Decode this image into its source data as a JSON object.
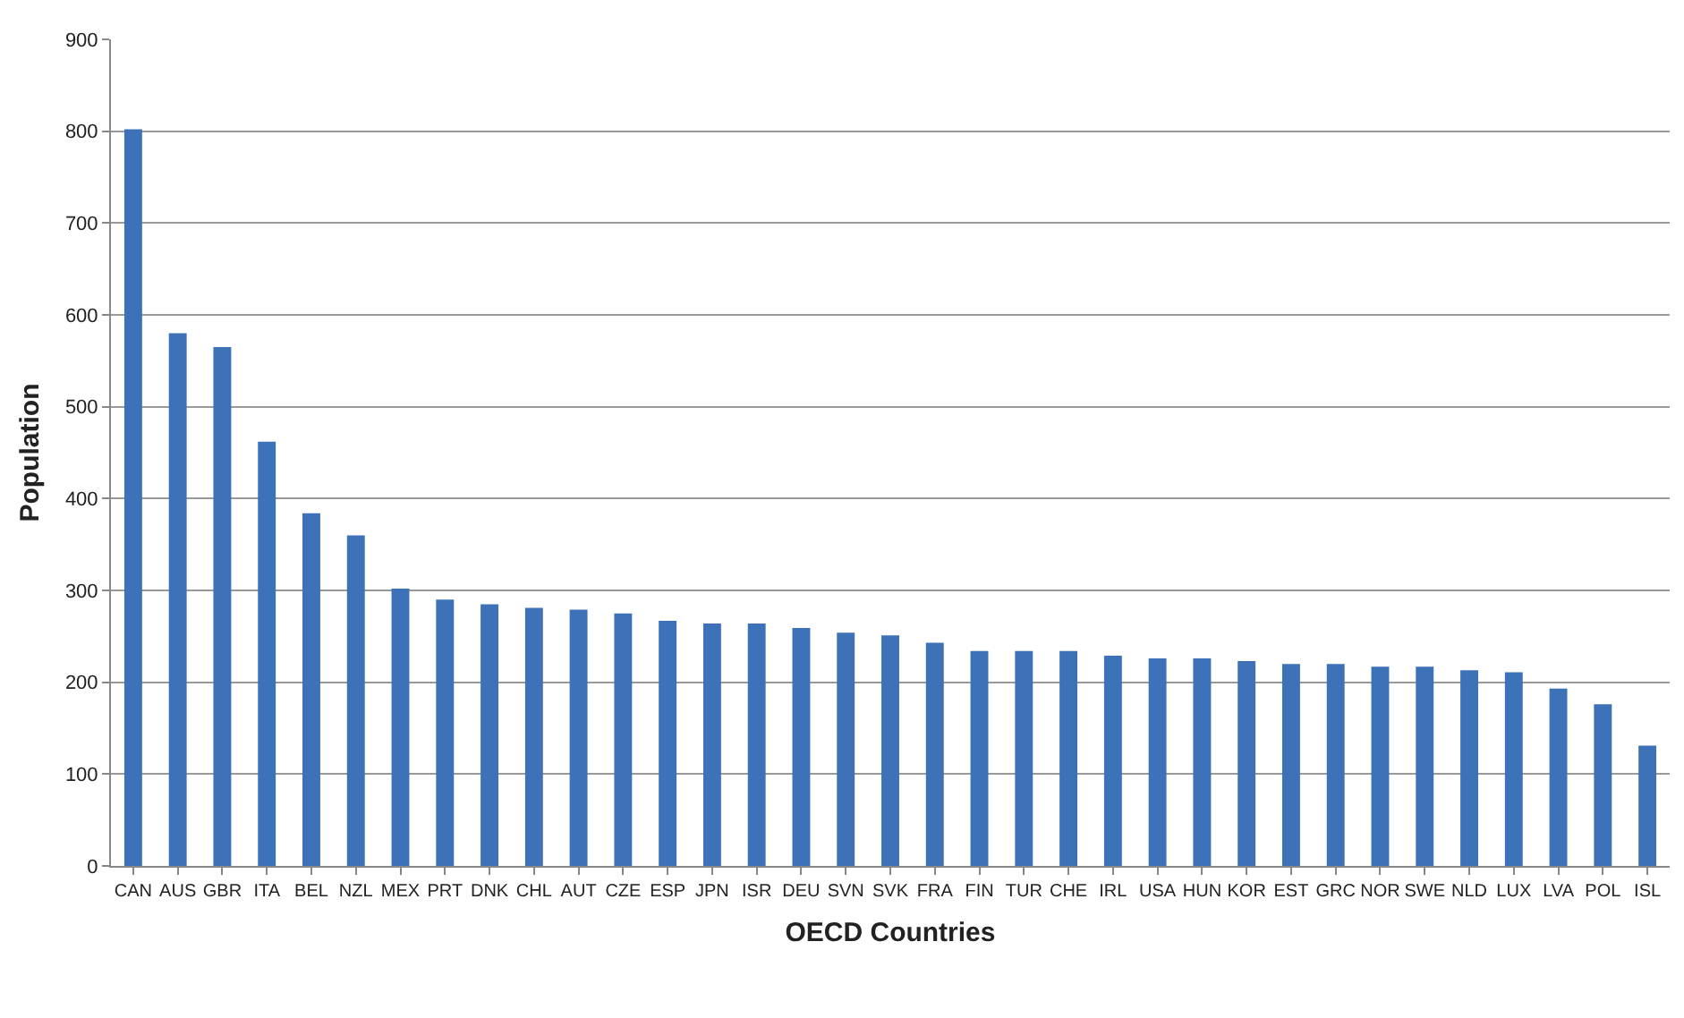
{
  "chart_data": {
    "type": "bar",
    "xlabel": "OECD Countries",
    "ylabel": "Population",
    "categories": [
      "CAN",
      "AUS",
      "GBR",
      "ITA",
      "BEL",
      "NZL",
      "MEX",
      "PRT",
      "DNK",
      "CHL",
      "AUT",
      "CZE",
      "ESP",
      "JPN",
      "ISR",
      "DEU",
      "SVN",
      "SVK",
      "FRA",
      "FIN",
      "TUR",
      "CHE",
      "IRL",
      "USA",
      "HUN",
      "KOR",
      "EST",
      "GRC",
      "NOR",
      "SWE",
      "NLD",
      "LUX",
      "LVA",
      "POL",
      "ISL"
    ],
    "values": [
      802,
      580,
      565,
      462,
      384,
      360,
      302,
      290,
      285,
      281,
      279,
      275,
      267,
      264,
      264,
      259,
      254,
      251,
      243,
      234,
      234,
      234,
      229,
      226,
      226,
      223,
      220,
      220,
      217,
      217,
      213,
      211,
      193,
      176,
      131
    ],
    "color": "#3d72b8",
    "ylim": [
      0,
      900
    ],
    "yticks": [
      0,
      100,
      200,
      300,
      400,
      500,
      600,
      700,
      800,
      900
    ],
    "grid": "y",
    "legend": false
  }
}
